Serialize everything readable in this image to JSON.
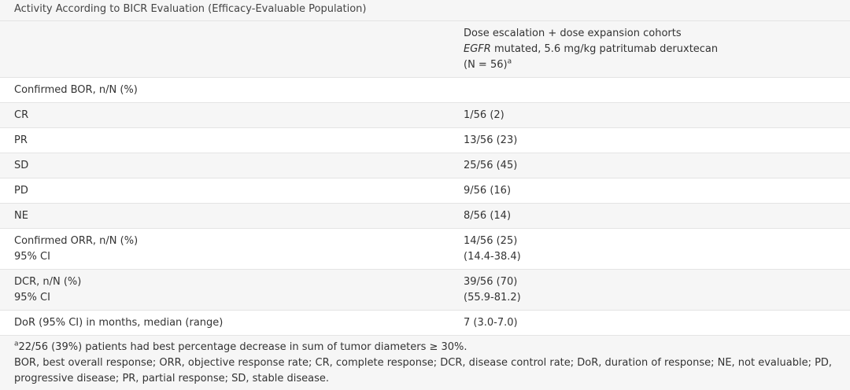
{
  "title": "Activity According to BICR Evaluation (Efficacy-Evaluable Population)",
  "header": {
    "col2_line1": "Dose escalation + dose expansion cohorts",
    "col2_line2_italic": "EGFR",
    "col2_line2_rest": " mutated, 5.6 mg/kg patritumab deruxtecan",
    "col2_line3": "(N = 56)",
    "col2_line3_sup": "a"
  },
  "rows": [
    {
      "label": "Confirmed BOR, n/N (%)",
      "value": ""
    },
    {
      "label": "CR",
      "value": "1/56 (2)"
    },
    {
      "label": "PR",
      "value": "13/56 (23)"
    },
    {
      "label": "SD",
      "value": "25/56 (45)"
    },
    {
      "label": "PD",
      "value": "9/56 (16)"
    },
    {
      "label": "NE",
      "value": "8/56 (14)"
    },
    {
      "label": "Confirmed ORR, n/N (%)",
      "label2": "95% CI",
      "value": "14/56 (25)",
      "value2": "(14.4-38.4)"
    },
    {
      "label": "DCR, n/N (%)",
      "label2": "95% CI",
      "value": "39/56 (70)",
      "value2": "(55.9-81.2)"
    },
    {
      "label": "DoR (95% CI) in months, median (range)",
      "value": "7 (3.0-7.0)"
    }
  ],
  "footnote": {
    "sup": "a",
    "line1": "22/56 (39%) patients had best percentage decrease in sum of tumor diameters ≥ 30%.",
    "line2": "BOR, best overall response; ORR, objective response rate; CR, complete response; DCR, disease control rate; DoR, duration of response; NE, not evaluable; PD,",
    "line3": "progressive disease; PR, partial response; SD, stable disease."
  }
}
